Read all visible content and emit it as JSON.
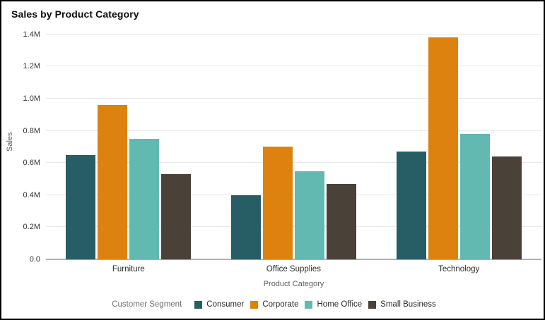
{
  "chart_data": {
    "type": "bar",
    "title": "Sales by Product Category",
    "xlabel": "Product Category",
    "ylabel": "Sales",
    "unit": "M",
    "ylim": [
      0,
      1.4
    ],
    "grid": true,
    "legend_position": "bottom",
    "legend_title": "Customer Segment",
    "categories": [
      "Furniture",
      "Office Supplies",
      "Technology"
    ],
    "series": [
      {
        "name": "Consumer",
        "color": "#275E66",
        "values": [
          0.65,
          0.4,
          0.67
        ]
      },
      {
        "name": "Corporate",
        "color": "#DE820F",
        "values": [
          0.96,
          0.7,
          1.38
        ]
      },
      {
        "name": "Home Office",
        "color": "#61B9B2",
        "values": [
          0.75,
          0.55,
          0.78
        ]
      },
      {
        "name": "Small Business",
        "color": "#4A4139",
        "values": [
          0.53,
          0.47,
          0.64
        ]
      }
    ],
    "yticks": [
      {
        "label": "0.0",
        "value": 0
      },
      {
        "label": "0.2M",
        "value": 0.2
      },
      {
        "label": "0.4M",
        "value": 0.4
      },
      {
        "label": "0.6M",
        "value": 0.6
      },
      {
        "label": "0.8M",
        "value": 0.8
      },
      {
        "label": "1.0M",
        "value": 1.0
      },
      {
        "label": "1.2M",
        "value": 1.2
      },
      {
        "label": "1.4M",
        "value": 1.4
      }
    ],
    "colors": {
      "gridline": "#e8e8e8",
      "axis_line": "#b3b0ad"
    }
  }
}
